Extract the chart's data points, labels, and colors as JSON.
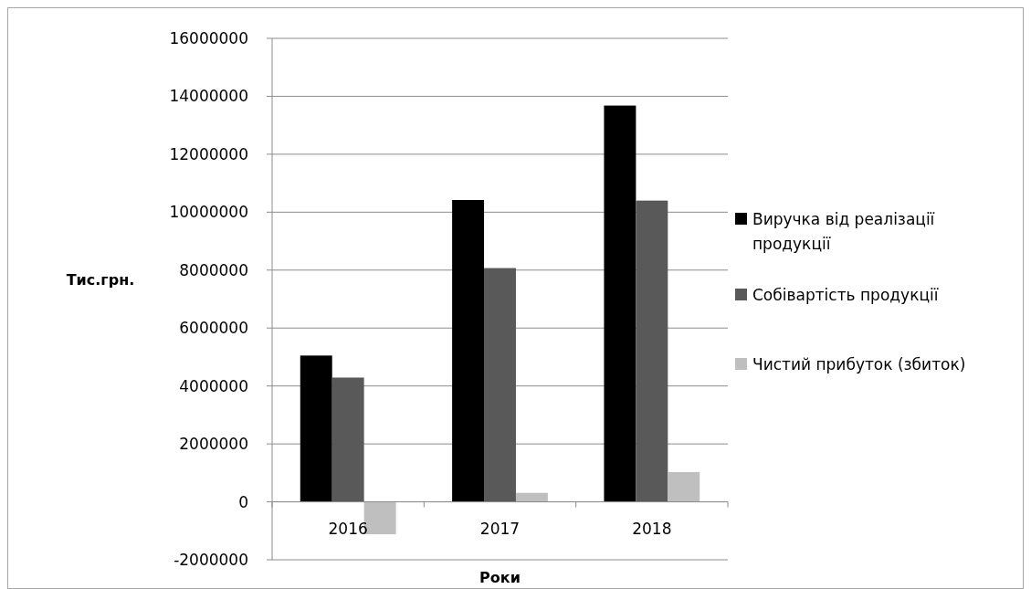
{
  "chart_data": {
    "type": "bar",
    "xlabel": "Роки",
    "ylabel": "Тис.грн.",
    "categories": [
      "2016",
      "2017",
      "2018"
    ],
    "series": [
      {
        "name": "Виручка від реалізації продукції",
        "color": "#000000",
        "values": [
          5050000,
          10420000,
          13680000
        ]
      },
      {
        "name": "Собівартість продукції",
        "color": "#595959",
        "values": [
          4290000,
          8070000,
          10400000
        ]
      },
      {
        "name": "Чистий прибуток (збиток)",
        "color": "#bfbfbf",
        "values": [
          -1120000,
          310000,
          1030000
        ]
      }
    ],
    "ylim": [
      -2000000,
      16000000
    ],
    "yticks": [
      -2000000,
      0,
      2000000,
      4000000,
      6000000,
      8000000,
      10000000,
      12000000,
      14000000,
      16000000
    ],
    "grid": "y",
    "legend": "right"
  }
}
